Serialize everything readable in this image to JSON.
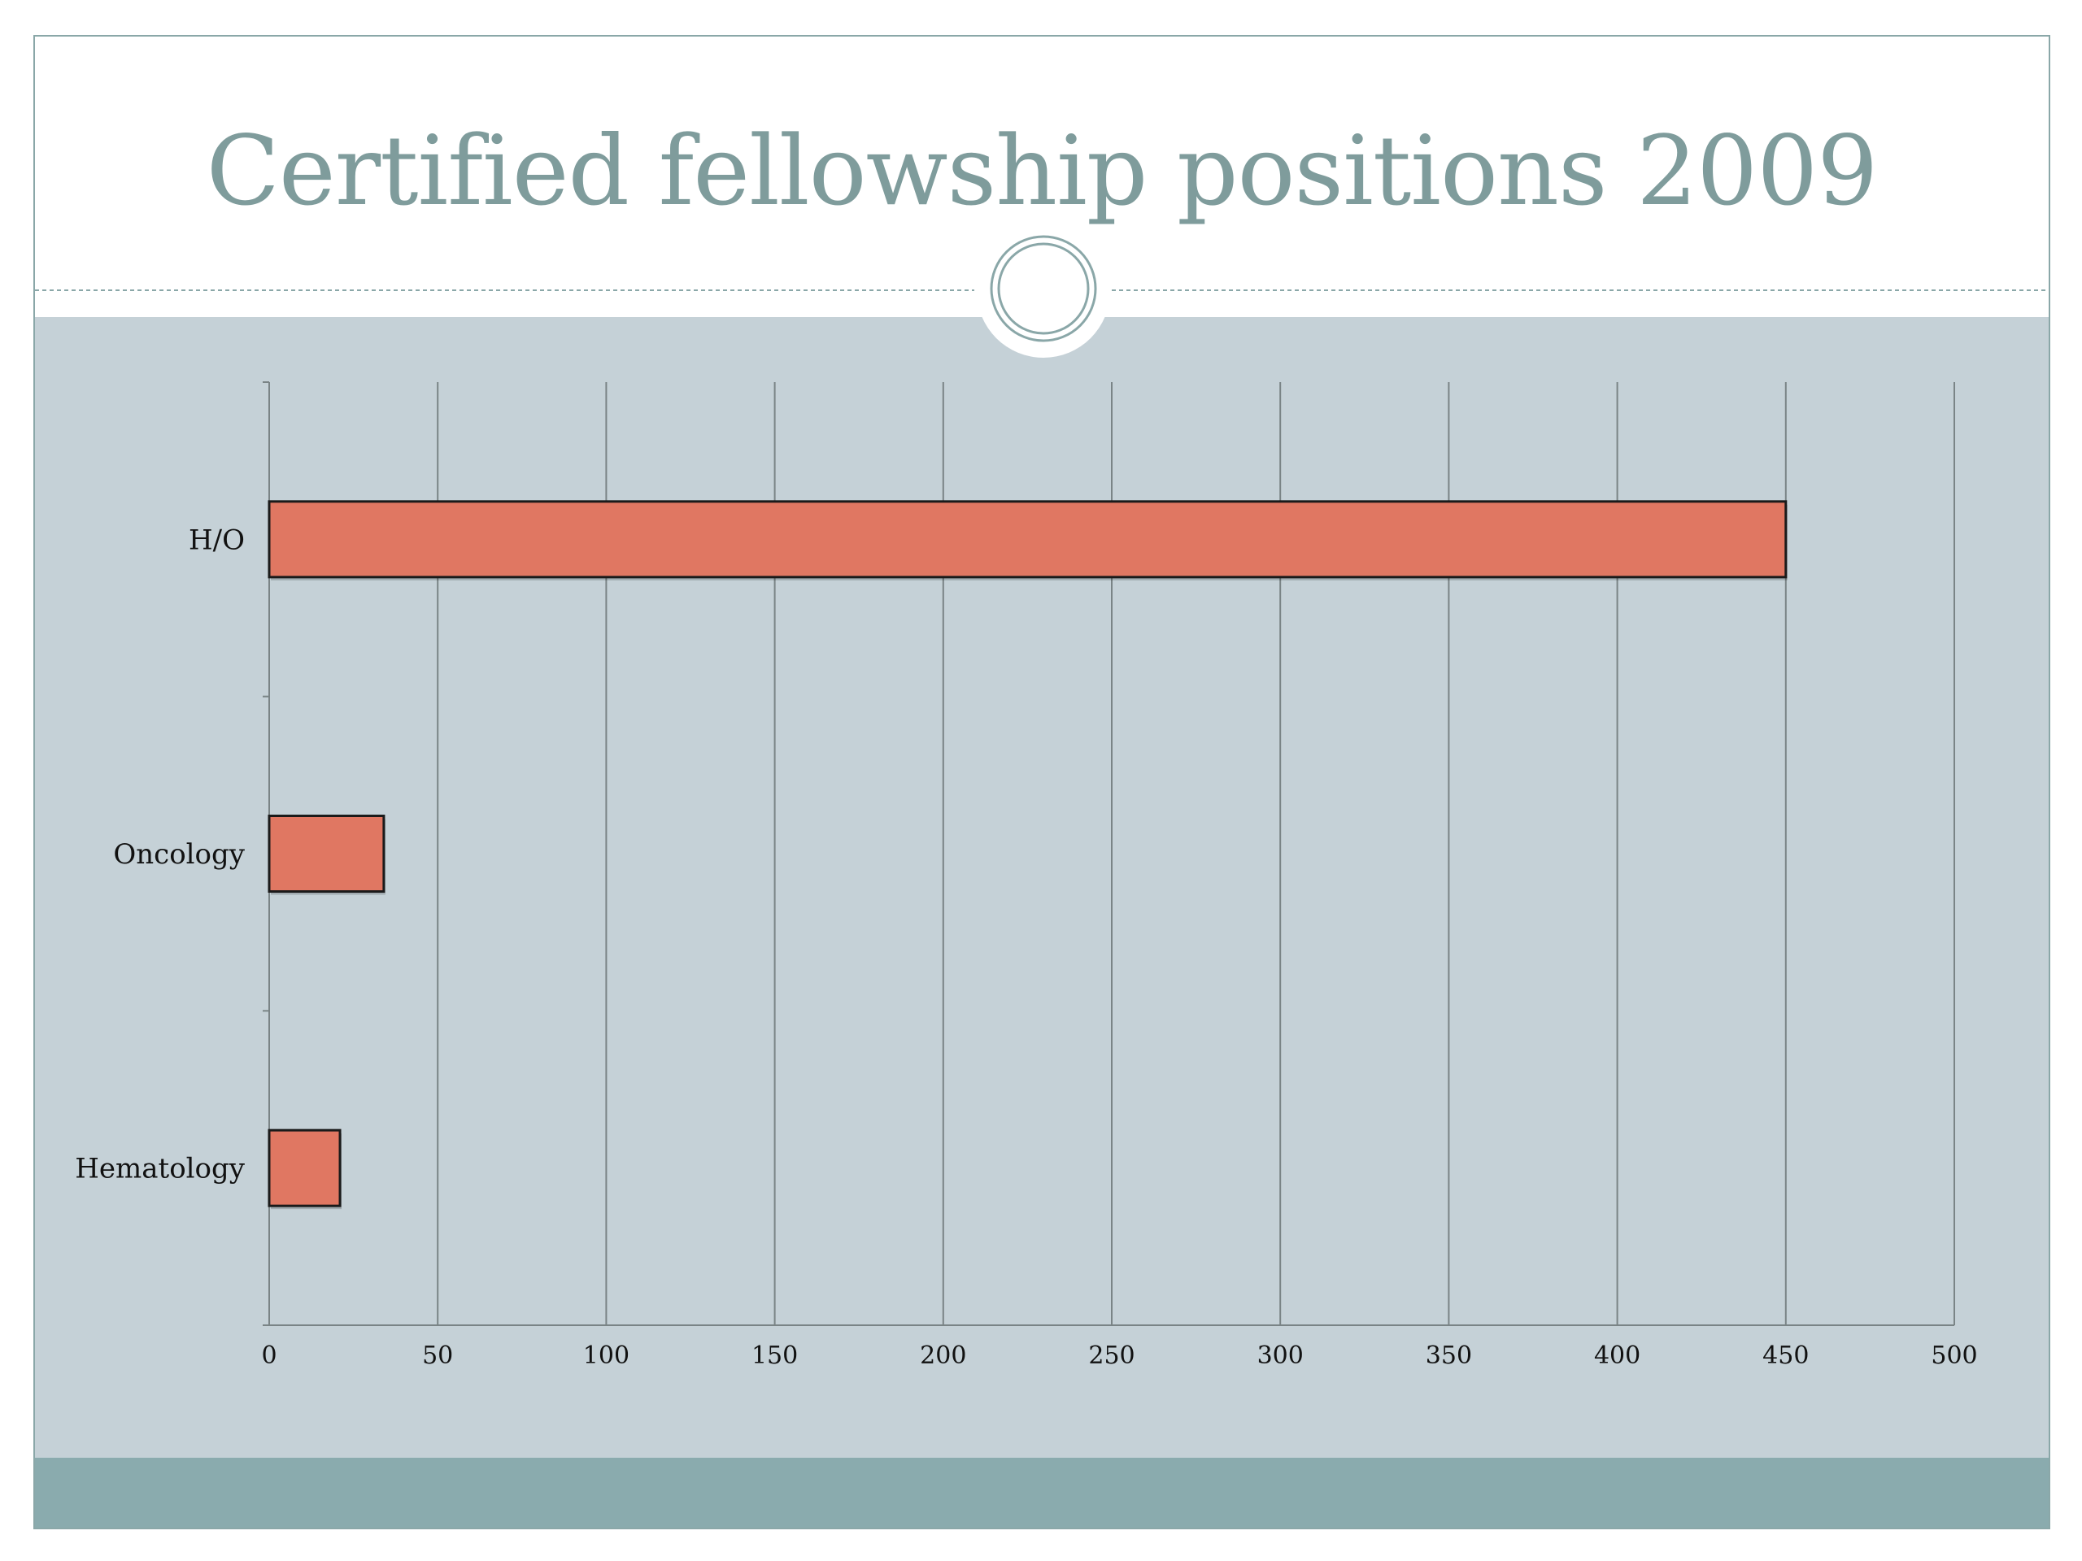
{
  "slide": {
    "title": "Certified fellowship positions 2009",
    "colors": {
      "title_text": "#7f9c9c",
      "content_panel": "#c5d1d7",
      "footer_band": "#8aabae",
      "frame": "#8aa7a8",
      "bar_fill": "#e07762",
      "bar_stroke": "#1a1a1a",
      "gridline": "#7a8486"
    }
  },
  "chart_data": {
    "type": "bar",
    "orientation": "horizontal",
    "categories": [
      "H/O",
      "Oncology",
      "Hematology"
    ],
    "values": [
      450,
      34,
      21
    ],
    "xlim": [
      0,
      500
    ],
    "x_ticks": [
      0,
      50,
      100,
      150,
      200,
      250,
      300,
      350,
      400,
      450,
      500
    ],
    "x_tick_labels": [
      "0",
      "50",
      "100",
      "150",
      "200",
      "250",
      "300",
      "350",
      "400",
      "450",
      "500"
    ],
    "grid": "vertical",
    "legend": "none"
  }
}
